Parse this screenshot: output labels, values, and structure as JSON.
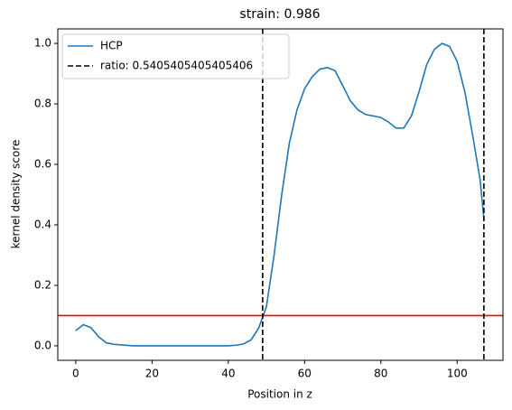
{
  "chart_data": {
    "type": "line",
    "title": "strain: 0.986",
    "xlabel": "Position in z",
    "ylabel": "kernel density score",
    "x": [
      0,
      2,
      4,
      6,
      8,
      10,
      15,
      20,
      25,
      30,
      35,
      40,
      42,
      44,
      46,
      48,
      50,
      52,
      54,
      56,
      58,
      60,
      62,
      64,
      66,
      68,
      70,
      72,
      74,
      76,
      78,
      80,
      82,
      84,
      86,
      88,
      90,
      92,
      94,
      96,
      98,
      100,
      102,
      104,
      106,
      107
    ],
    "series": [
      {
        "name": "HCP",
        "color": "#1f77b4",
        "values": [
          0.05,
          0.07,
          0.06,
          0.03,
          0.01,
          0.005,
          0,
          0,
          0,
          0,
          0,
          0,
          0.002,
          0.006,
          0.02,
          0.06,
          0.13,
          0.3,
          0.5,
          0.67,
          0.78,
          0.85,
          0.89,
          0.915,
          0.92,
          0.91,
          0.86,
          0.81,
          0.78,
          0.765,
          0.76,
          0.755,
          0.74,
          0.72,
          0.72,
          0.76,
          0.84,
          0.93,
          0.98,
          1.0,
          0.99,
          0.94,
          0.84,
          0.7,
          0.55,
          0.42
        ]
      }
    ],
    "vlines": {
      "name": "ratio: 0.5405405405405406",
      "color": "#000000",
      "values": [
        49,
        107
      ]
    },
    "hline": {
      "value": 0.1,
      "color": "#ff0000"
    },
    "xlim": [
      -4.7,
      112
    ],
    "ylim": [
      -0.048,
      1.048
    ],
    "xticks": [
      0,
      20,
      40,
      60,
      80,
      100
    ],
    "yticks": [
      {
        "value": 0,
        "label": "0.0"
      },
      {
        "value": 0.2,
        "label": "0.2"
      },
      {
        "value": 0.4,
        "label": "0.4"
      },
      {
        "value": 0.6,
        "label": "0.6"
      },
      {
        "value": 0.8,
        "label": "0.8"
      },
      {
        "value": 1,
        "label": "1.0"
      }
    ],
    "legend": "upper left"
  }
}
